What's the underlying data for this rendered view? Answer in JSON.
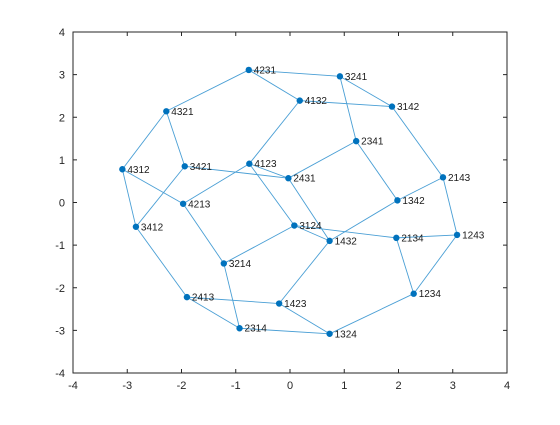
{
  "chart_data": {
    "type": "scatter",
    "title": "",
    "xlabel": "",
    "ylabel": "",
    "xlim": [
      -4,
      4
    ],
    "ylim": [
      -4,
      4
    ],
    "xticks": [
      "-4",
      "-3",
      "-2",
      "-1",
      "0",
      "1",
      "2",
      "3",
      "4"
    ],
    "yticks": [
      "-4",
      "-3",
      "-2",
      "-1",
      "0",
      "1",
      "2",
      "3",
      "4"
    ],
    "grid": false,
    "legend": "none",
    "colors": {
      "marker": "#0072bd",
      "edge": "#4a9fd5",
      "axis": "#262626"
    },
    "nodes": [
      {
        "label": "4231",
        "x": -0.76,
        "y": 3.11
      },
      {
        "label": "3241",
        "x": 0.92,
        "y": 2.96
      },
      {
        "label": "4132",
        "x": 0.18,
        "y": 2.39
      },
      {
        "label": "3142",
        "x": 1.88,
        "y": 2.25
      },
      {
        "label": "4321",
        "x": -2.28,
        "y": 2.14
      },
      {
        "label": "2341",
        "x": 1.22,
        "y": 1.44
      },
      {
        "label": "4123",
        "x": -0.75,
        "y": 0.91
      },
      {
        "label": "3421",
        "x": -1.94,
        "y": 0.85
      },
      {
        "label": "4312",
        "x": -3.09,
        "y": 0.78
      },
      {
        "label": "2431",
        "x": -0.03,
        "y": 0.57
      },
      {
        "label": "2143",
        "x": 2.82,
        "y": 0.59
      },
      {
        "label": "1342",
        "x": 1.98,
        "y": 0.05
      },
      {
        "label": "4213",
        "x": -1.97,
        "y": -0.03
      },
      {
        "label": "3124",
        "x": 0.08,
        "y": -0.54
      },
      {
        "label": "3412",
        "x": -2.84,
        "y": -0.57
      },
      {
        "label": "1243",
        "x": 3.08,
        "y": -0.76
      },
      {
        "label": "2134",
        "x": 1.96,
        "y": -0.83
      },
      {
        "label": "1432",
        "x": 0.73,
        "y": -0.9
      },
      {
        "label": "3214",
        "x": -1.22,
        "y": -1.43
      },
      {
        "label": "1234",
        "x": 2.28,
        "y": -2.14
      },
      {
        "label": "2413",
        "x": -1.9,
        "y": -2.22
      },
      {
        "label": "1423",
        "x": -0.2,
        "y": -2.37
      },
      {
        "label": "2314",
        "x": -0.93,
        "y": -2.95
      },
      {
        "label": "1324",
        "x": 0.73,
        "y": -3.08
      }
    ],
    "edges": [
      [
        "4231",
        "3241"
      ],
      [
        "4231",
        "4132"
      ],
      [
        "4231",
        "4321"
      ],
      [
        "3241",
        "3142"
      ],
      [
        "3241",
        "2341"
      ],
      [
        "4132",
        "3142"
      ],
      [
        "4132",
        "4123"
      ],
      [
        "3142",
        "2143"
      ],
      [
        "4321",
        "4312"
      ],
      [
        "4321",
        "3421"
      ],
      [
        "2341",
        "2431"
      ],
      [
        "2341",
        "1342"
      ],
      [
        "4123",
        "4213"
      ],
      [
        "4123",
        "2431"
      ],
      [
        "4123",
        "3124"
      ],
      [
        "3421",
        "3412"
      ],
      [
        "3421",
        "2431"
      ],
      [
        "4312",
        "4213"
      ],
      [
        "4312",
        "3412"
      ],
      [
        "2431",
        "1432"
      ],
      [
        "2143",
        "1342"
      ],
      [
        "2143",
        "1243"
      ],
      [
        "1342",
        "1432"
      ],
      [
        "4213",
        "3214"
      ],
      [
        "3124",
        "2134"
      ],
      [
        "3124",
        "3214"
      ],
      [
        "3124",
        "1432"
      ],
      [
        "3412",
        "2413"
      ],
      [
        "1243",
        "2134"
      ],
      [
        "1243",
        "1234"
      ],
      [
        "2134",
        "1234"
      ],
      [
        "1432",
        "1423"
      ],
      [
        "3214",
        "2314"
      ],
      [
        "1234",
        "1324"
      ],
      [
        "2413",
        "1423"
      ],
      [
        "2413",
        "2314"
      ],
      [
        "1423",
        "1324"
      ],
      [
        "2314",
        "1324"
      ]
    ]
  }
}
